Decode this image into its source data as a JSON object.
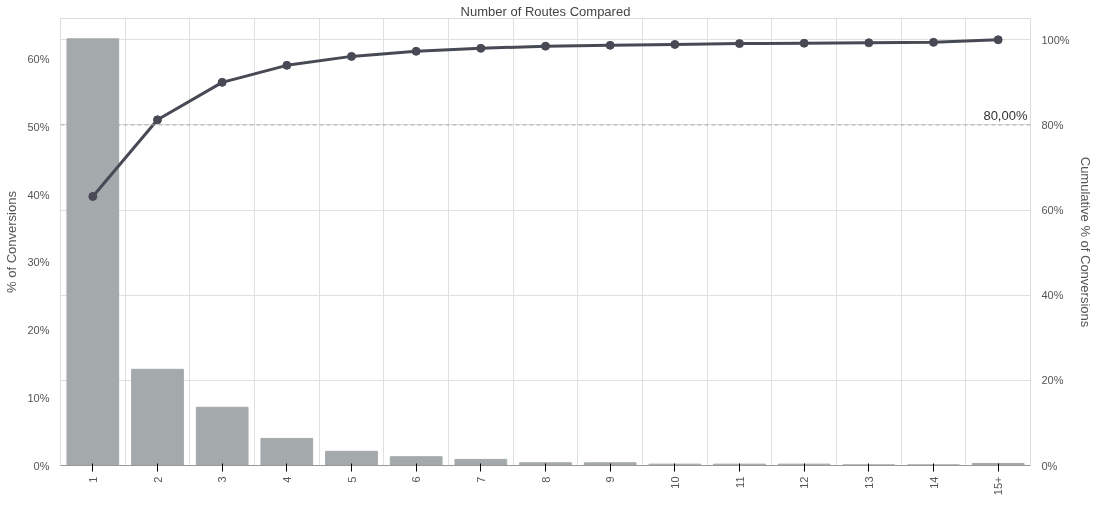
{
  "chart_data": {
    "type": "bar",
    "xlabel": "Number of Routes Compared",
    "ylabel": "% of Conversions",
    "y2label": "Cumulative % of Conversions",
    "categories": [
      "1",
      "2",
      "3",
      "4",
      "5",
      "6",
      "7",
      "8",
      "9",
      "10",
      "11",
      "12",
      "13",
      "14",
      "15+"
    ],
    "series": [
      {
        "color": "#a4a9ab",
        "values": [
          63,
          14.2,
          8.6,
          4.0,
          2.1,
          1.3,
          0.9,
          0.4,
          0.4,
          0.2,
          0.2,
          0.2,
          0.1,
          0.1,
          0.3
        ]
      },
      {
        "type": "line",
        "axis": "y2",
        "color": "#474a55",
        "values": [
          63.2,
          81.2,
          90,
          94,
          96.1,
          97.3,
          98,
          98.5,
          98.7,
          98.9,
          99.1,
          99.2,
          99.3,
          99.4,
          100
        ]
      }
    ],
    "ylim": [
      0,
      66
    ],
    "yticks": [
      {
        "value": 0,
        "label": "0%"
      },
      {
        "value": 10,
        "label": "10%"
      },
      {
        "value": 20,
        "label": "20%"
      },
      {
        "value": 30,
        "label": "30%"
      },
      {
        "value": 40,
        "label": "40%"
      },
      {
        "value": 50,
        "label": "50%"
      },
      {
        "value": 60,
        "label": "60%"
      }
    ],
    "y2lim": [
      0,
      105
    ],
    "y2ticks": [
      {
        "value": 0,
        "label": "0%"
      },
      {
        "value": 20,
        "label": "20%"
      },
      {
        "value": 40,
        "label": "40%"
      },
      {
        "value": 60,
        "label": "60%"
      },
      {
        "value": 80,
        "label": "80%"
      },
      {
        "value": 100,
        "label": "100%"
      }
    ],
    "ref_lines": [
      {
        "axis": "y2",
        "value": 80,
        "label": "80,00%",
        "color": "#aaaaaa",
        "line_style": "dashed"
      }
    ],
    "grid": true,
    "marker": "circle"
  }
}
